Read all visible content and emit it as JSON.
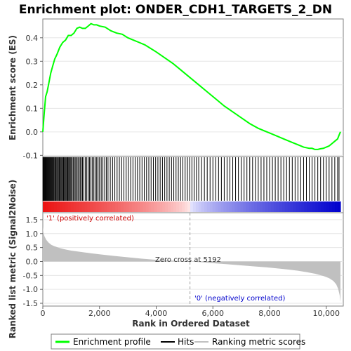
{
  "chart_data": [
    {
      "type": "line",
      "title": "Enrichment plot: ONDER_CDH1_TARGETS_2_DN",
      "ylabel": "Enrichment score (ES)",
      "xlim": [
        0,
        10600
      ],
      "ylim": [
        -0.105,
        0.48
      ],
      "yticks": [
        "-0.1",
        "0.0",
        "0.1",
        "0.2",
        "0.3",
        "0.4"
      ],
      "ytick_values": [
        -0.1,
        0.0,
        0.1,
        0.2,
        0.3,
        0.4
      ],
      "grid": true,
      "series": [
        {
          "name": "Enrichment profile",
          "color": "#00ff00",
          "x": [
            0,
            50,
            100,
            150,
            200,
            280,
            350,
            420,
            500,
            600,
            700,
            800,
            900,
            1000,
            1100,
            1200,
            1300,
            1400,
            1500,
            1600,
            1700,
            1800,
            1900,
            2000,
            2200,
            2400,
            2600,
            2800,
            3000,
            3200,
            3400,
            3600,
            3800,
            4000,
            4300,
            4600,
            4900,
            5200,
            5500,
            5800,
            6100,
            6400,
            6700,
            7000,
            7300,
            7600,
            7900,
            8200,
            8500,
            8800,
            9000,
            9200,
            9400,
            9500,
            9600,
            9700,
            9800,
            9900,
            10000,
            10100,
            10200,
            10300,
            10400,
            10450,
            10500
          ],
          "y": [
            0.0,
            0.08,
            0.15,
            0.17,
            0.2,
            0.25,
            0.28,
            0.31,
            0.33,
            0.36,
            0.38,
            0.39,
            0.41,
            0.41,
            0.42,
            0.44,
            0.445,
            0.44,
            0.44,
            0.45,
            0.46,
            0.455,
            0.455,
            0.45,
            0.445,
            0.43,
            0.42,
            0.415,
            0.4,
            0.39,
            0.38,
            0.37,
            0.355,
            0.34,
            0.315,
            0.29,
            0.26,
            0.23,
            0.2,
            0.17,
            0.14,
            0.11,
            0.085,
            0.06,
            0.035,
            0.015,
            0.0,
            -0.015,
            -0.03,
            -0.045,
            -0.055,
            -0.065,
            -0.07,
            -0.07,
            -0.075,
            -0.075,
            -0.072,
            -0.07,
            -0.065,
            -0.06,
            -0.05,
            -0.04,
            -0.03,
            -0.015,
            0.0
          ]
        }
      ]
    },
    {
      "type": "scatter",
      "series": [
        {
          "name": "Hits",
          "color": "#000000",
          "x": [
            5,
            20,
            40,
            60,
            80,
            100,
            125,
            150,
            175,
            200,
            225,
            250,
            275,
            300,
            325,
            350,
            375,
            400,
            430,
            460,
            490,
            520,
            550,
            580,
            610,
            640,
            670,
            700,
            730,
            760,
            790,
            820,
            850,
            880,
            910,
            940,
            970,
            1000,
            1040,
            1080,
            1120,
            1160,
            1200,
            1240,
            1280,
            1320,
            1360,
            1400,
            1450,
            1500,
            1550,
            1600,
            1650,
            1700,
            1750,
            1800,
            1850,
            1900,
            1950,
            2000,
            2060,
            2120,
            2180,
            2240,
            2300,
            2380,
            2460,
            2540,
            2620,
            2700,
            2780,
            2860,
            2940,
            3020,
            3100,
            3180,
            3260,
            3340,
            3420,
            3500,
            3580,
            3660,
            3740,
            3820,
            3900,
            3980,
            4060,
            4140,
            4220,
            4300,
            4380,
            4460,
            4540,
            4620,
            4700,
            4780,
            4860,
            4940,
            5020,
            5100,
            5180,
            5260,
            5340,
            5420,
            5500,
            5600,
            5700,
            5800,
            5900,
            6000,
            6100,
            6200,
            6300,
            6400,
            6500,
            6600,
            6700,
            6800,
            6900,
            7000,
            7100,
            7200,
            7300,
            7400,
            7500,
            7600,
            7700,
            7800,
            7900,
            8000,
            8100,
            8200,
            8300,
            8400,
            8500,
            8600,
            8700,
            8800,
            8900,
            9000,
            9100,
            9200,
            9300,
            9400,
            9500,
            9600,
            9700,
            9800,
            9900,
            10000,
            10100,
            10200,
            10300,
            10400,
            10450
          ]
        }
      ]
    },
    {
      "type": "area",
      "ylabel": "Ranked list metric (Signal2Noise)",
      "xlabel": "Rank in Ordered Dataset",
      "xlim": [
        0,
        10600
      ],
      "ylim": [
        -1.6,
        1.75
      ],
      "xticks": [
        "0",
        "2,000",
        "4,000",
        "6,000",
        "8,000",
        "10,000"
      ],
      "xtick_values": [
        0,
        2000,
        4000,
        6000,
        8000,
        10000
      ],
      "yticks": [
        "-1.5",
        "-1.0",
        "-0.5",
        "0.0",
        "0.5",
        "1.0",
        "1.5"
      ],
      "ytick_values": [
        -1.5,
        -1.0,
        -0.5,
        0.0,
        0.5,
        1.0,
        1.5
      ],
      "grid": true,
      "series": [
        {
          "name": "Ranking metric scores",
          "color": "#c0c0c0",
          "x": [
            0,
            20,
            60,
            120,
            200,
            300,
            400,
            600,
            800,
            1000,
            1500,
            2000,
            2500,
            3000,
            3500,
            4000,
            4500,
            5000,
            5192,
            5500,
            6000,
            6500,
            7000,
            7500,
            8000,
            8500,
            9000,
            9300,
            9600,
            9900,
            10100,
            10250,
            10350,
            10420,
            10470,
            10500
          ],
          "y": [
            1.25,
            1.05,
            0.9,
            0.78,
            0.68,
            0.6,
            0.55,
            0.48,
            0.43,
            0.39,
            0.32,
            0.26,
            0.2,
            0.15,
            0.1,
            0.06,
            0.03,
            0.01,
            0.0,
            -0.02,
            -0.06,
            -0.1,
            -0.14,
            -0.18,
            -0.22,
            -0.27,
            -0.33,
            -0.38,
            -0.44,
            -0.52,
            -0.6,
            -0.7,
            -0.82,
            -0.98,
            -1.2,
            -1.45
          ]
        }
      ],
      "annotations": [
        {
          "text": "'1' (positively correlated)",
          "color": "#cc0000"
        },
        {
          "text": "Zero cross at 5192",
          "color": "#333333"
        },
        {
          "text": "'0' (negatively correlated)",
          "color": "#0000cc"
        }
      ],
      "zero_cross": 5192
    }
  ],
  "legend": {
    "placement": "bottom",
    "items": [
      {
        "label": "Enrichment profile",
        "color": "#00ff00"
      },
      {
        "label": "Hits",
        "color": "#000000"
      },
      {
        "label": "Ranking metric scores",
        "color": "#c0c0c0"
      }
    ]
  }
}
